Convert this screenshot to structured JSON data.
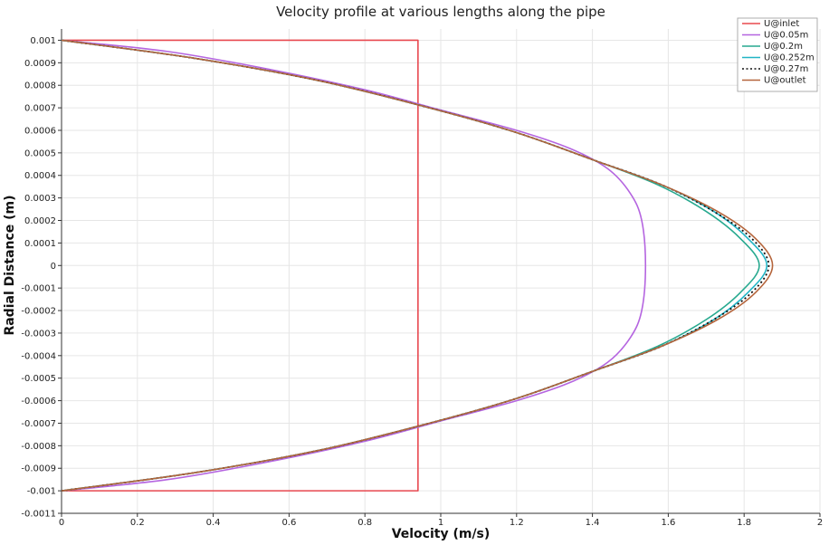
{
  "chart_data": {
    "type": "line",
    "title": "Velocity profile at various lengths along the pipe",
    "xlabel": "Velocity (m/s)",
    "ylabel": "Radial Distance (m)",
    "xlim": [
      0,
      2
    ],
    "ylim": [
      -0.0011,
      0.00105
    ],
    "xticks": [
      "0",
      "0.2",
      "0.4",
      "0.6",
      "0.8",
      "1",
      "1.2",
      "1.4",
      "1.6",
      "1.8",
      "2"
    ],
    "yticks": [
      "0.001",
      "0.0009",
      "0.0008",
      "0.0007",
      "0.0006",
      "0.0005",
      "0.0004",
      "0.0003",
      "0.0002",
      "0.0001",
      "0",
      "-0.0001",
      "-0.0002",
      "-0.0003",
      "-0.0004",
      "-0.0005",
      "-0.0006",
      "-0.0007",
      "-0.0008",
      "-0.0009",
      "-0.001",
      "-0.0011"
    ],
    "grid": true,
    "legend_position": "top-right",
    "series": [
      {
        "name": "U@inlet",
        "color": "#e8484f",
        "dash": "solid",
        "points": [
          [
            0,
            -0.001
          ],
          [
            0.94,
            -0.001
          ],
          [
            0.94,
            0.001
          ],
          [
            0,
            0.001
          ]
        ]
      },
      {
        "name": "U@0.05m",
        "color": "#b565e0",
        "dash": "solid",
        "points": [
          [
            0,
            -0.001
          ],
          [
            0.28,
            -0.00095
          ],
          [
            0.55,
            -0.00087
          ],
          [
            0.8,
            -0.00078
          ],
          [
            1.0,
            -0.00069
          ],
          [
            1.2,
            -0.0006
          ],
          [
            1.34,
            -0.00052
          ],
          [
            1.44,
            -0.00043
          ],
          [
            1.5,
            -0.00032
          ],
          [
            1.53,
            -0.0002
          ],
          [
            1.54,
            0
          ],
          [
            1.53,
            0.0002
          ],
          [
            1.5,
            0.00032
          ],
          [
            1.44,
            0.00043
          ],
          [
            1.34,
            0.00052
          ],
          [
            1.2,
            0.0006
          ],
          [
            1.0,
            0.00069
          ],
          [
            0.8,
            0.00078
          ],
          [
            0.55,
            0.00087
          ],
          [
            0.28,
            0.00095
          ],
          [
            0,
            0.001
          ]
        ]
      },
      {
        "name": "U@0.2m",
        "color": "#27a98f",
        "dash": "solid",
        "points": [
          [
            0,
            -0.001
          ],
          [
            0.35,
            -0.00092
          ],
          [
            0.68,
            -0.00082
          ],
          [
            0.97,
            -0.0007
          ],
          [
            1.2,
            -0.00059
          ],
          [
            1.4,
            -0.00047
          ],
          [
            1.57,
            -0.00036
          ],
          [
            1.7,
            -0.00024
          ],
          [
            1.79,
            -0.00012
          ],
          [
            1.84,
            0
          ],
          [
            1.79,
            0.00012
          ],
          [
            1.7,
            0.00024
          ],
          [
            1.57,
            0.00036
          ],
          [
            1.4,
            0.00047
          ],
          [
            1.2,
            0.00059
          ],
          [
            0.97,
            0.0007
          ],
          [
            0.68,
            0.00082
          ],
          [
            0.35,
            0.00092
          ],
          [
            0,
            0.001
          ]
        ]
      },
      {
        "name": "U@0.252m",
        "color": "#21b5c6",
        "dash": "solid",
        "points": [
          [
            0,
            -0.001
          ],
          [
            0.35,
            -0.00092
          ],
          [
            0.68,
            -0.00082
          ],
          [
            0.97,
            -0.0007
          ],
          [
            1.2,
            -0.00059
          ],
          [
            1.4,
            -0.00047
          ],
          [
            1.58,
            -0.00036
          ],
          [
            1.72,
            -0.00024
          ],
          [
            1.81,
            -0.00012
          ],
          [
            1.86,
            0
          ],
          [
            1.81,
            0.00012
          ],
          [
            1.72,
            0.00024
          ],
          [
            1.58,
            0.00036
          ],
          [
            1.4,
            0.00047
          ],
          [
            1.2,
            0.00059
          ],
          [
            0.97,
            0.0007
          ],
          [
            0.68,
            0.00082
          ],
          [
            0.35,
            0.00092
          ],
          [
            0,
            0.001
          ]
        ]
      },
      {
        "name": "U@0.27m",
        "color": "#111111",
        "dash": "dotted",
        "points": [
          [
            0,
            -0.001
          ],
          [
            0.35,
            -0.00092
          ],
          [
            0.68,
            -0.00082
          ],
          [
            0.97,
            -0.0007
          ],
          [
            1.2,
            -0.00059
          ],
          [
            1.4,
            -0.00047
          ],
          [
            1.58,
            -0.00036
          ],
          [
            1.72,
            -0.00024
          ],
          [
            1.82,
            -0.00012
          ],
          [
            1.865,
            0
          ],
          [
            1.82,
            0.00012
          ],
          [
            1.72,
            0.00024
          ],
          [
            1.58,
            0.00036
          ],
          [
            1.4,
            0.00047
          ],
          [
            1.2,
            0.00059
          ],
          [
            0.97,
            0.0007
          ],
          [
            0.68,
            0.00082
          ],
          [
            0.35,
            0.00092
          ],
          [
            0,
            0.001
          ]
        ]
      },
      {
        "name": "U@outlet",
        "color": "#b5653c",
        "dash": "solid",
        "points": [
          [
            0,
            -0.001
          ],
          [
            0.35,
            -0.00092
          ],
          [
            0.68,
            -0.00082
          ],
          [
            0.97,
            -0.0007
          ],
          [
            1.2,
            -0.00059
          ],
          [
            1.4,
            -0.00047
          ],
          [
            1.58,
            -0.00036
          ],
          [
            1.73,
            -0.00024
          ],
          [
            1.83,
            -0.00012
          ],
          [
            1.875,
            0
          ],
          [
            1.83,
            0.00012
          ],
          [
            1.73,
            0.00024
          ],
          [
            1.58,
            0.00036
          ],
          [
            1.4,
            0.00047
          ],
          [
            1.2,
            0.00059
          ],
          [
            0.97,
            0.0007
          ],
          [
            0.68,
            0.00082
          ],
          [
            0.35,
            0.00092
          ],
          [
            0,
            0.001
          ]
        ]
      }
    ]
  }
}
